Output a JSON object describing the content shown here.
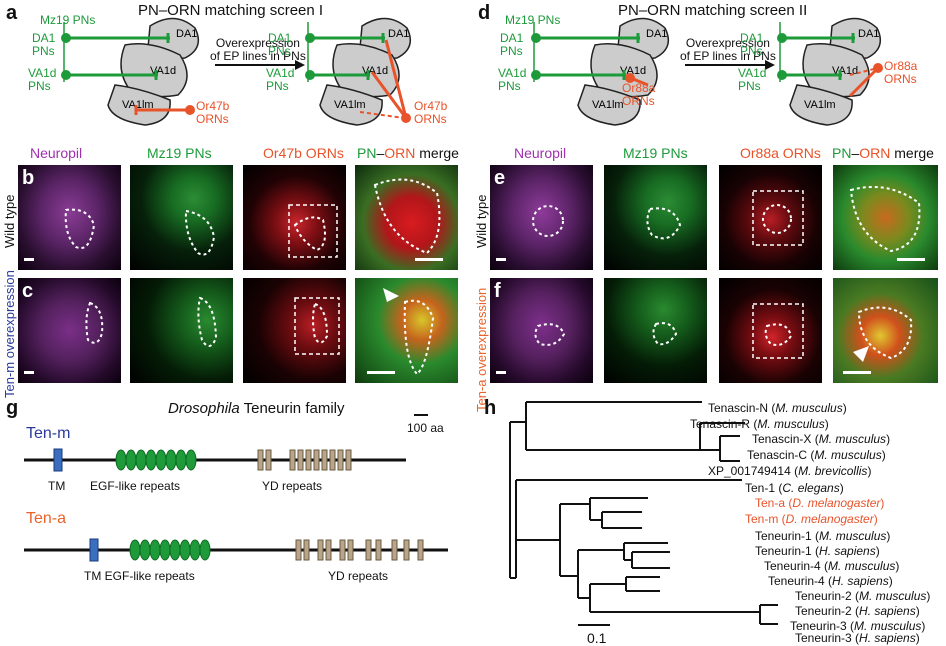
{
  "panels": {
    "a": {
      "letter": "a",
      "title": "PN–ORN matching screen I",
      "mz19": "Mz19 PNs",
      "da1_pns": "DA1\nPNs",
      "va1d_pns": "VA1d\nPNs",
      "orn": "Or47b\nORNs",
      "orn_right": "Or47b\nORNs",
      "arrow_label": "Overexpression\nof EP lines in PNs",
      "glom": [
        "DA1",
        "VA1d",
        "VA1lm"
      ]
    },
    "d": {
      "letter": "d",
      "title": "PN–ORN matching screen II",
      "mz19": "Mz19 PNs",
      "da1_pns": "DA1\nPNs",
      "va1d_pns": "VA1d\nPNs",
      "orn": "Or88a\nORNs",
      "orn_right": "Or88a\nORNs",
      "arrow_label": "Overexpression\nof EP lines in PNs",
      "glom": [
        "DA1",
        "VA1d",
        "VA1lm"
      ]
    },
    "left_columns": [
      "Neuropil",
      "Mz19 PNs",
      "Or47b ORNs"
    ],
    "left_merge": {
      "pn": "PN",
      "dash": "–",
      "orn": "ORN",
      "rest": " merge"
    },
    "right_columns": [
      "Neuropil",
      "Mz19 PNs",
      "Or88a ORNs"
    ],
    "right_merge": {
      "pn": "PN",
      "dash": "–",
      "orn": "ORN",
      "rest": " merge"
    },
    "b": "b",
    "c": "c",
    "e": "e",
    "f": "f",
    "row_wild": "Wild type",
    "row_tenm": "Ten-m overexpression",
    "row_tena": "Ten-a overexpression",
    "g": {
      "letter": "g",
      "title_italic": "Drosophila",
      "title_rest": " Teneurin family",
      "scale": "100 aa",
      "tenm": "Ten-m",
      "tena": "Ten-a",
      "tm": "TM",
      "egf": "EGF-like repeats",
      "yd": "YD repeats",
      "tm_egf": "TM EGF-like repeats"
    },
    "h": {
      "letter": "h",
      "scale": "0.1",
      "leaves": [
        {
          "name": "Tenascin-N (",
          "sp": "M. musculus",
          "end": ")",
          "red": false
        },
        {
          "name": "Tenascin-R (",
          "sp": "M. musculus",
          "end": ")",
          "red": false
        },
        {
          "name": "Tenascin-X (",
          "sp": "M. musculus",
          "end": ")",
          "red": false
        },
        {
          "name": "Tenascin-C (",
          "sp": "M. musculus",
          "end": ")",
          "red": false
        },
        {
          "name": "XP_001749414 (",
          "sp": "M. brevicollis",
          "end": ")",
          "red": false
        },
        {
          "name": "Ten-1 (",
          "sp": "C. elegans",
          "end": ")",
          "red": false
        },
        {
          "name": "Ten-a (",
          "sp": "D. melanogaster",
          "end": ")",
          "red": true
        },
        {
          "name": "Ten-m (",
          "sp": "D. melanogaster",
          "end": ")",
          "red": true
        },
        {
          "name": "Teneurin-1 (",
          "sp": "M. musculus",
          "end": ")",
          "red": false
        },
        {
          "name": "Teneurin-1 (",
          "sp": "H. sapiens",
          "end": ")",
          "red": false
        },
        {
          "name": "Teneurin-4 (",
          "sp": "M. musculus",
          "end": ")",
          "red": false
        },
        {
          "name": "Teneurin-4 (",
          "sp": "H. sapiens",
          "end": ")",
          "red": false
        },
        {
          "name": "Teneurin-2 (",
          "sp": "M. musculus",
          "end": ")",
          "red": false
        },
        {
          "name": "Teneurin-2 (",
          "sp": "H. sapiens",
          "end": ")",
          "red": false
        },
        {
          "name": "Teneurin-3 (",
          "sp": "M. musculus",
          "end": ")",
          "red": false
        },
        {
          "name": "Teneurin-3 (",
          "sp": "H. sapiens",
          "end": ")",
          "red": false
        }
      ]
    }
  },
  "colors": {
    "green": "#1d9a3a",
    "red": "#e8532a",
    "magenta": "#a030b0",
    "tenm_blue": "#2b3a9a",
    "tena_orange": "#e8632a",
    "egf": "#1f9a3a",
    "yd": "#b8a58a",
    "tm": "#3a6fc0"
  }
}
